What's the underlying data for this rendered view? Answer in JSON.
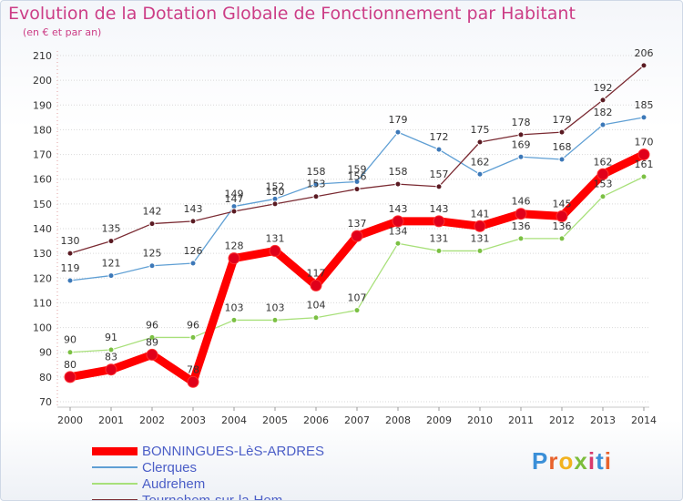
{
  "header": {
    "title": "Evolution de la Dotation Globale de Fonctionnement par Habitant",
    "subtitle": "(en € et par an)"
  },
  "colors": {
    "title": "#cc3d86",
    "legend_text": "#4b5ec7",
    "grid": "#d9d9d9"
  },
  "logo": {
    "text": "Proxiti",
    "letter_colors": [
      "#3a8fd8",
      "#e8622c",
      "#f2b21e",
      "#7cbd3b",
      "#d83a6c",
      "#3a8fd8",
      "#e8622c"
    ]
  },
  "chart_data": {
    "type": "line",
    "title": "Evolution de la Dotation Globale de Fonctionnement par Habitant",
    "subtitle": "(en € et par an)",
    "xlabel": "",
    "ylabel": "",
    "categories": [
      "2000",
      "2001",
      "2002",
      "2003",
      "2004",
      "2005",
      "2006",
      "2007",
      "2008",
      "2009",
      "2010",
      "2011",
      "2012",
      "2013",
      "2014"
    ],
    "ylim": [
      70,
      210
    ],
    "yticks": [
      70,
      80,
      90,
      100,
      110,
      120,
      130,
      140,
      150,
      160,
      170,
      180,
      190,
      200,
      210
    ],
    "grid": "horizontal dotted",
    "legend_position": "bottom-left",
    "series": [
      {
        "name": "BONNINGUES-LèS-ARDRES",
        "color": "#ff0000",
        "marker": "#e0001a",
        "emphasis": true,
        "values": [
          80,
          83,
          89,
          78,
          128,
          131,
          117,
          137,
          143,
          143,
          141,
          146,
          145,
          162,
          170
        ]
      },
      {
        "name": "Clerques",
        "color": "#5f9fd4",
        "marker": "#3c78b8",
        "emphasis": false,
        "values": [
          119,
          121,
          125,
          126,
          149,
          152,
          158,
          159,
          179,
          172,
          162,
          169,
          168,
          182,
          185
        ]
      },
      {
        "name": "Audrehem",
        "color": "#a8e07a",
        "marker": "#7bc043",
        "emphasis": false,
        "values": [
          90,
          91,
          96,
          96,
          103,
          103,
          104,
          107,
          134,
          131,
          131,
          136,
          136,
          153,
          161
        ]
      },
      {
        "name": "Tournehem-sur-la-Hem",
        "color": "#7a2a32",
        "marker": "#5a1a22",
        "emphasis": false,
        "values": [
          130,
          135,
          142,
          143,
          147,
          150,
          153,
          156,
          158,
          157,
          175,
          178,
          179,
          192,
          206
        ]
      }
    ]
  }
}
